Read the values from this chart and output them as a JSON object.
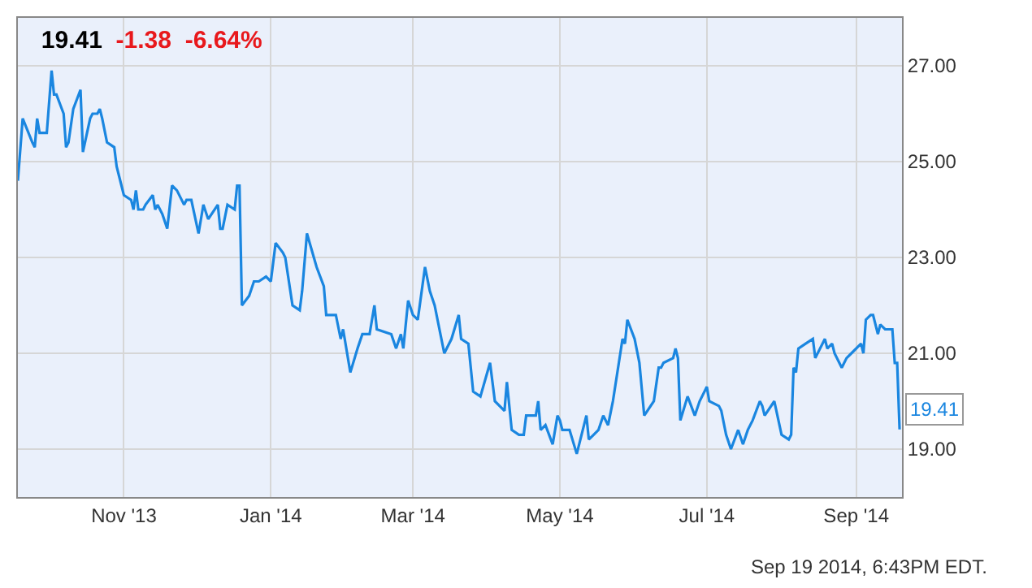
{
  "chart_data": {
    "type": "line",
    "title": "19.41 -1.38 -6.64%",
    "annotations": [
      {
        "text": "19.41",
        "x": "2014-09-19",
        "y": 19.41
      },
      "Sep 19 2014, 6:43PM EDT."
    ],
    "x": [
      "2013-09-18",
      "2013-09-20",
      "2013-09-24",
      "2013-09-25",
      "2013-09-26",
      "2013-09-27",
      "2013-09-30",
      "2013-10-02",
      "2013-10-03",
      "2013-10-04",
      "2013-10-07",
      "2013-10-08",
      "2013-10-09",
      "2013-10-11",
      "2013-10-14",
      "2013-10-15",
      "2013-10-18",
      "2013-10-19",
      "2013-10-21",
      "2013-10-22",
      "2013-10-23",
      "2013-10-25",
      "2013-10-28",
      "2013-10-29",
      "2013-10-31",
      "2013-11-01",
      "2013-11-04",
      "2013-11-05",
      "2013-11-06",
      "2013-11-07",
      "2013-11-09",
      "2013-11-10",
      "2013-11-13",
      "2013-11-14",
      "2013-11-15",
      "2013-11-17",
      "2013-11-19",
      "2013-11-21",
      "2013-11-23",
      "2013-11-26",
      "2013-11-27",
      "2013-11-29",
      "2013-12-02",
      "2013-12-04",
      "2013-12-06",
      "2013-12-10",
      "2013-12-11",
      "2013-12-12",
      "2013-12-14",
      "2013-12-17",
      "2013-12-18",
      "2013-12-19",
      "2013-12-20",
      "2013-12-23",
      "2013-12-25",
      "2013-12-27",
      "2013-12-30",
      "2014-01-01",
      "2014-01-03",
      "2014-01-06",
      "2014-01-07",
      "2014-01-10",
      "2014-01-13",
      "2014-01-14",
      "2014-01-16",
      "2014-01-20",
      "2014-01-23",
      "2014-01-24",
      "2014-01-28",
      "2014-01-30",
      "2014-01-31",
      "2014-02-03",
      "2014-02-06",
      "2014-02-08",
      "2014-02-11",
      "2014-02-13",
      "2014-02-14",
      "2014-02-20",
      "2014-02-22",
      "2014-02-24",
      "2014-02-25",
      "2014-02-27",
      "2014-03-01",
      "2014-03-03",
      "2014-03-06",
      "2014-03-08",
      "2014-03-10",
      "2014-03-12",
      "2014-03-14",
      "2014-03-17",
      "2014-03-20",
      "2014-03-21",
      "2014-03-24",
      "2014-03-26",
      "2014-03-29",
      "2014-04-02",
      "2014-04-04",
      "2014-04-08",
      "2014-04-09",
      "2014-04-11",
      "2014-04-14",
      "2014-04-16",
      "2014-04-17",
      "2014-04-21",
      "2014-04-22",
      "2014-04-23",
      "2014-04-25",
      "2014-04-28",
      "2014-04-30",
      "2014-05-01",
      "2014-05-02",
      "2014-05-05",
      "2014-05-08",
      "2014-05-12",
      "2014-05-13",
      "2014-05-15",
      "2014-05-17",
      "2014-05-19",
      "2014-05-21",
      "2014-05-23",
      "2014-05-27",
      "2014-05-28",
      "2014-05-29",
      "2014-06-01",
      "2014-06-03",
      "2014-06-05",
      "2014-06-09",
      "2014-06-11",
      "2014-06-12",
      "2014-06-13",
      "2014-06-17",
      "2014-06-18",
      "2014-06-19",
      "2014-06-20",
      "2014-06-23",
      "2014-06-26",
      "2014-06-28",
      "2014-07-01",
      "2014-07-02",
      "2014-07-06",
      "2014-07-07",
      "2014-07-09",
      "2014-07-11",
      "2014-07-14",
      "2014-07-16",
      "2014-07-18",
      "2014-07-20",
      "2014-07-23",
      "2014-07-24",
      "2014-07-25",
      "2014-07-29",
      "2014-08-01",
      "2014-08-04",
      "2014-08-05",
      "2014-08-06",
      "2014-08-07",
      "2014-08-08",
      "2014-08-11",
      "2014-08-14",
      "2014-08-15",
      "2014-08-19",
      "2014-08-20",
      "2014-08-22",
      "2014-08-23",
      "2014-08-26",
      "2014-08-28",
      "2014-08-30",
      "2014-09-03",
      "2014-09-04",
      "2014-09-05",
      "2014-09-07",
      "2014-09-08",
      "2014-09-10",
      "2014-09-11",
      "2014-09-13",
      "2014-09-16",
      "2014-09-17",
      "2014-09-18",
      "2014-09-19"
    ],
    "values": [
      24.6,
      25.9,
      25.4,
      25.3,
      25.9,
      25.6,
      25.6,
      26.9,
      26.4,
      26.4,
      26.0,
      25.3,
      25.4,
      26.1,
      26.5,
      25.2,
      25.9,
      26.0,
      26.0,
      26.1,
      25.9,
      25.4,
      25.3,
      24.9,
      24.5,
      24.3,
      24.2,
      24.0,
      24.4,
      24.0,
      24.0,
      24.1,
      24.3,
      24.0,
      24.1,
      23.9,
      23.6,
      24.5,
      24.4,
      24.1,
      24.2,
      24.2,
      23.5,
      24.1,
      23.8,
      24.1,
      23.6,
      23.6,
      24.1,
      24.0,
      24.5,
      24.5,
      22.0,
      22.2,
      22.5,
      22.5,
      22.6,
      22.5,
      23.3,
      23.1,
      23.0,
      22.0,
      21.9,
      22.3,
      23.5,
      22.8,
      22.4,
      21.8,
      21.8,
      21.3,
      21.5,
      20.6,
      21.1,
      21.4,
      21.4,
      22.0,
      21.5,
      21.4,
      21.1,
      21.4,
      21.1,
      22.1,
      21.8,
      21.7,
      22.8,
      22.3,
      22.0,
      21.5,
      21.0,
      21.3,
      21.8,
      21.3,
      21.2,
      20.2,
      20.1,
      20.8,
      20.0,
      19.8,
      20.4,
      19.4,
      19.3,
      19.3,
      19.7,
      19.7,
      20.0,
      19.4,
      19.5,
      19.1,
      19.7,
      19.6,
      19.4,
      19.4,
      18.9,
      19.7,
      19.2,
      19.3,
      19.4,
      19.7,
      19.5,
      20.0,
      21.3,
      21.2,
      21.7,
      21.3,
      20.8,
      19.7,
      20.0,
      20.7,
      20.7,
      20.8,
      20.9,
      21.1,
      20.9,
      19.6,
      20.1,
      19.7,
      20.0,
      20.3,
      20.0,
      19.9,
      19.8,
      19.3,
      19.0,
      19.4,
      19.1,
      19.4,
      19.6,
      20.0,
      19.9,
      19.7,
      20.0,
      19.3,
      19.2,
      19.3,
      20.7,
      20.6,
      21.1,
      21.2,
      21.3,
      20.9,
      21.3,
      21.1,
      21.2,
      21.0,
      20.7,
      20.9,
      21.0,
      21.2,
      21.0,
      21.7,
      21.8,
      21.8,
      21.4,
      21.6,
      21.5,
      21.5,
      20.8,
      20.8,
      19.41
    ],
    "color": "#1a86e0",
    "xlim": [
      "2013-09-18",
      "2014-09-20"
    ],
    "xticks": [
      {
        "value": "2013-11-01",
        "label": "Nov '13"
      },
      {
        "value": "2014-01-01",
        "label": "Jan '14"
      },
      {
        "value": "2014-03-01",
        "label": "Mar '14"
      },
      {
        "value": "2014-05-01",
        "label": "May '14"
      },
      {
        "value": "2014-07-01",
        "label": "Jul '14"
      },
      {
        "value": "2014-09-01",
        "label": "Sep '14"
      }
    ],
    "ylim": [
      18,
      28
    ],
    "yticks": [
      {
        "value": 19,
        "label": "19.00"
      },
      {
        "value": 21,
        "label": "21.00"
      },
      {
        "value": 23,
        "label": "23.00"
      },
      {
        "value": 25,
        "label": "25.00"
      },
      {
        "value": 27,
        "label": "27.00"
      }
    ],
    "grid": true
  }
}
